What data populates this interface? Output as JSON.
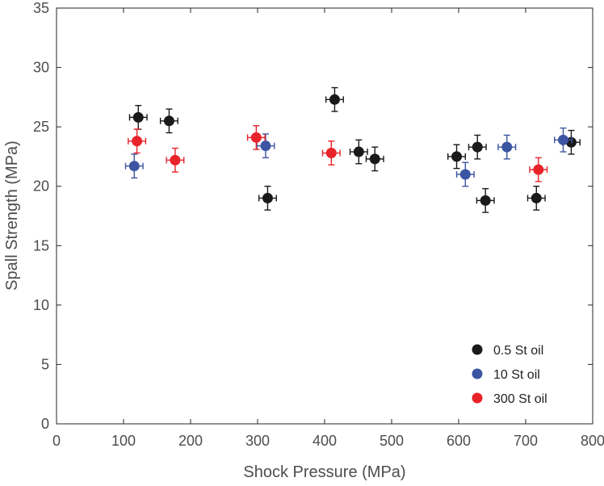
{
  "chart_data": {
    "type": "scatter",
    "title": "",
    "xlabel": "Shock Pressure (MPa)",
    "ylabel": "Spall Strength (MPa)",
    "xlim": [
      0,
      800
    ],
    "ylim": [
      0,
      35
    ],
    "xticks": [
      0,
      100,
      200,
      300,
      400,
      500,
      600,
      700,
      800
    ],
    "yticks": [
      0,
      5,
      10,
      15,
      20,
      25,
      30,
      35
    ],
    "grid": false,
    "legend_position": "bottom-right",
    "error_bars": {
      "x_half_width": 13,
      "y_half_width": 1.0
    },
    "series": [
      {
        "name": "0.5 St oil",
        "color": "#1a1a1a",
        "points": [
          {
            "x": 122,
            "y": 25.8
          },
          {
            "x": 168,
            "y": 25.5
          },
          {
            "x": 315,
            "y": 19.0
          },
          {
            "x": 415,
            "y": 27.3
          },
          {
            "x": 451,
            "y": 22.9
          },
          {
            "x": 475,
            "y": 22.3
          },
          {
            "x": 597,
            "y": 22.5
          },
          {
            "x": 628,
            "y": 23.3
          },
          {
            "x": 640,
            "y": 18.8
          },
          {
            "x": 716,
            "y": 19.0
          },
          {
            "x": 768,
            "y": 23.7
          }
        ]
      },
      {
        "name": "10 St oil",
        "color": "#3b55a3",
        "points": [
          {
            "x": 116,
            "y": 21.7
          },
          {
            "x": 312,
            "y": 23.4
          },
          {
            "x": 610,
            "y": 21.0
          },
          {
            "x": 672,
            "y": 23.3
          },
          {
            "x": 756,
            "y": 23.9
          }
        ]
      },
      {
        "name": "300 St oil",
        "color": "#e8232a",
        "points": [
          {
            "x": 120,
            "y": 23.8
          },
          {
            "x": 177,
            "y": 22.2
          },
          {
            "x": 298,
            "y": 24.1
          },
          {
            "x": 410,
            "y": 22.8
          },
          {
            "x": 719,
            "y": 21.4
          }
        ]
      }
    ]
  }
}
